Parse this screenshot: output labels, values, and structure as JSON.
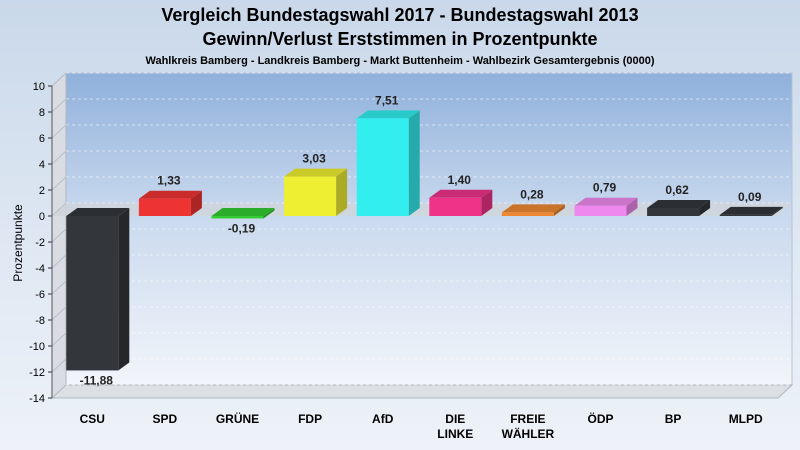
{
  "chart_data": {
    "type": "bar",
    "title": "Vergleich Bundestagswahl 2017 - Bundestagswahl 2013",
    "subtitle_line": "Gewinn/Verlust Erststimmen in Prozentpunkte",
    "subtitle": "Wahlkreis Bamberg - Landkreis Bamberg - Markt Buttenheim - Wahlbezirk Gesamtergebnis (0000)",
    "xlabel": "",
    "ylabel": "Prozentpunkte",
    "ylim": [
      -14,
      10
    ],
    "yticks": [
      "10",
      "8",
      "6",
      "4",
      "2",
      "0",
      "-2",
      "-4",
      "-6",
      "-8",
      "-10",
      "-12",
      "-14"
    ],
    "ytick_values": [
      10,
      8,
      6,
      4,
      2,
      0,
      -2,
      -4,
      -6,
      -8,
      -10,
      -12,
      -14
    ],
    "grid": true,
    "categories": [
      [
        "CSU"
      ],
      [
        "SPD"
      ],
      [
        "GRÜNE"
      ],
      [
        "FDP"
      ],
      [
        "AfD"
      ],
      [
        "DIE",
        "LINKE"
      ],
      [
        "FREIE",
        "WÄHLER"
      ],
      [
        "ÖDP"
      ],
      [
        "BP"
      ],
      [
        "MLPD"
      ]
    ],
    "values": [
      -11.88,
      1.33,
      -0.19,
      3.03,
      7.51,
      1.4,
      0.28,
      0.79,
      0.62,
      0.09
    ],
    "value_labels": [
      "-11,88",
      "1,33",
      "-0,19",
      "3,03",
      "7,51",
      "1,40",
      "0,28",
      "0,79",
      "0,62",
      "0,09"
    ],
    "colors": [
      "#33363b",
      "#ee3333",
      "#33cc33",
      "#eeee33",
      "#33eeee",
      "#ee3388",
      "#ee8833",
      "#ee88ee",
      "#33363b",
      "#33363b"
    ]
  }
}
